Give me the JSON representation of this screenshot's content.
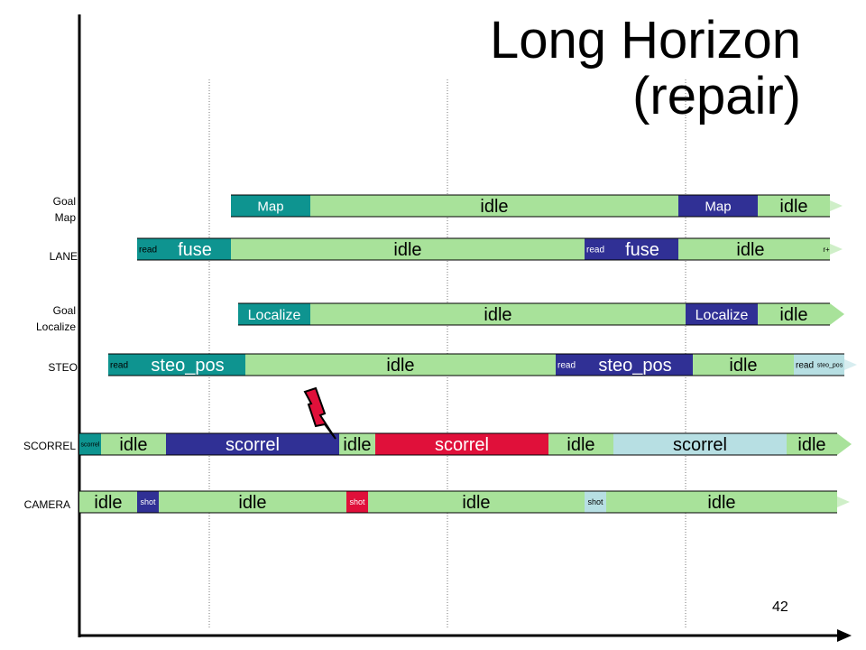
{
  "title_line1": "Long Horizon",
  "title_line2": "(repair)",
  "page_number": "42",
  "colors": {
    "teal": "#0E9490",
    "green": "#A8E29A",
    "navy": "#303095",
    "red": "#E0103A",
    "lightblue": "#B7DFE3",
    "axis": "#000000"
  },
  "rows": [
    {
      "label": "Goal Map",
      "segments": [
        {
          "text": "Map",
          "color": "teal"
        },
        {
          "text": "idle",
          "color": "green"
        },
        {
          "text": "Map",
          "color": "navy"
        },
        {
          "text": "idle",
          "color": "green"
        }
      ]
    },
    {
      "label": "LANE",
      "segments": [
        {
          "text": "read",
          "color": "teal"
        },
        {
          "text": "fuse",
          "color": "teal"
        },
        {
          "text": "idle",
          "color": "green"
        },
        {
          "text": "read",
          "color": "navy"
        },
        {
          "text": "fuse",
          "color": "navy"
        },
        {
          "text": "idle",
          "color": "green"
        },
        {
          "text": "r+",
          "color": "green"
        }
      ]
    },
    {
      "label": "Goal Localize",
      "segments": [
        {
          "text": "Localize",
          "color": "teal"
        },
        {
          "text": "idle",
          "color": "green"
        },
        {
          "text": "Localize",
          "color": "navy"
        },
        {
          "text": "idle",
          "color": "green"
        }
      ]
    },
    {
      "label": "STEO",
      "segments": [
        {
          "text": "read",
          "color": "teal"
        },
        {
          "text": "steo_pos",
          "color": "teal"
        },
        {
          "text": "idle",
          "color": "green"
        },
        {
          "text": "read",
          "color": "navy"
        },
        {
          "text": "steo_pos",
          "color": "navy"
        },
        {
          "text": "idle",
          "color": "green"
        },
        {
          "text": "read",
          "color": "lightblue"
        },
        {
          "text": "steo_pos",
          "color": "lightblue"
        }
      ]
    },
    {
      "label": "SCORREL",
      "segments": [
        {
          "text": "scorrel",
          "color": "teal"
        },
        {
          "text": "idle",
          "color": "green"
        },
        {
          "text": "scorrel",
          "color": "navy"
        },
        {
          "text": "idle",
          "color": "green"
        },
        {
          "text": "scorrel",
          "color": "red"
        },
        {
          "text": "idle",
          "color": "green"
        },
        {
          "text": "scorrel",
          "color": "lightblue"
        },
        {
          "text": "idle",
          "color": "green"
        }
      ]
    },
    {
      "label": "CAMERA",
      "segments": [
        {
          "text": "idle",
          "color": "green"
        },
        {
          "text": "shot",
          "color": "navy"
        },
        {
          "text": "idle",
          "color": "green"
        },
        {
          "text": "shot",
          "color": "red"
        },
        {
          "text": "idle",
          "color": "green"
        },
        {
          "text": "shot",
          "color": "lightblue"
        },
        {
          "text": "idle",
          "color": "green"
        }
      ]
    }
  ]
}
